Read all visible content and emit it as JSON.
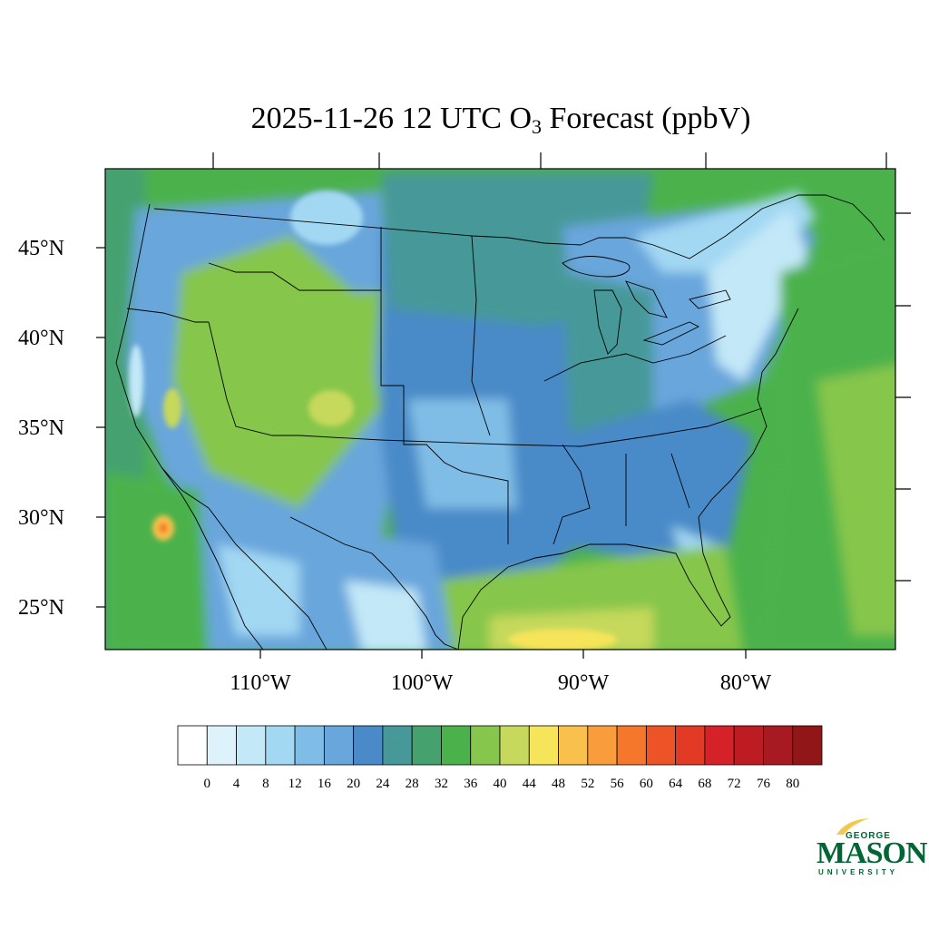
{
  "title": {
    "prefix": "2025-11-26 12 UTC O",
    "subscript": "3",
    "suffix": " Forecast (ppbV)"
  },
  "map": {
    "latitude_labels": [
      "45°N",
      "40°N",
      "35°N",
      "30°N",
      "25°N"
    ],
    "longitude_labels": [
      "110°W",
      "100°W",
      "90°W",
      "80°W"
    ]
  },
  "colorbar": {
    "labels": [
      "0",
      "4",
      "8",
      "12",
      "16",
      "20",
      "24",
      "28",
      "32",
      "36",
      "40",
      "44",
      "48",
      "52",
      "56",
      "60",
      "64",
      "68",
      "72",
      "76",
      "80"
    ],
    "colors": [
      "#ffffff",
      "#def2fb",
      "#c3e8f8",
      "#a3d8f3",
      "#80bde6",
      "#69a6dc",
      "#4a8ac8",
      "#479999",
      "#45a26f",
      "#4bb24b",
      "#86c64c",
      "#c6d95c",
      "#f6e45a",
      "#f9c14c",
      "#f89c3c",
      "#f4772b",
      "#ec5428",
      "#e23a25",
      "#d52229",
      "#bd1c23",
      "#a81a21",
      "#911617"
    ]
  },
  "logo": {
    "line1": "GEORGE",
    "line2": "MASON",
    "line3": "UNIVERSITY",
    "color": "#006633"
  }
}
